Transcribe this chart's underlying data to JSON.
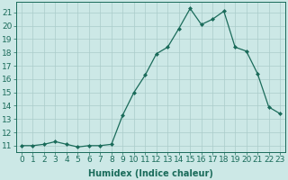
{
  "x": [
    0,
    1,
    2,
    3,
    4,
    5,
    6,
    7,
    8,
    9,
    10,
    11,
    12,
    13,
    14,
    15,
    16,
    17,
    18,
    19,
    20,
    21,
    22,
    23
  ],
  "y": [
    11,
    11,
    11.1,
    11.3,
    11.1,
    10.9,
    11,
    11,
    11.1,
    13.3,
    15,
    16.3,
    17.9,
    18.4,
    19.8,
    21.3,
    20.1,
    20.5,
    21.1,
    18.4,
    18.1,
    16.4,
    13.9,
    13.4
  ],
  "line_color": "#1a6b5a",
  "marker": "D",
  "markersize": 2.0,
  "linewidth": 0.9,
  "bg_color": "#cce8e6",
  "grid_color": "#aaccca",
  "xlabel": "Humidex (Indice chaleur)",
  "ylabel_ticks": [
    11,
    12,
    13,
    14,
    15,
    16,
    17,
    18,
    19,
    20,
    21
  ],
  "xlim": [
    -0.5,
    23.5
  ],
  "ylim": [
    10.5,
    21.8
  ],
  "xlabel_fontsize": 7,
  "tick_fontsize": 6.5
}
